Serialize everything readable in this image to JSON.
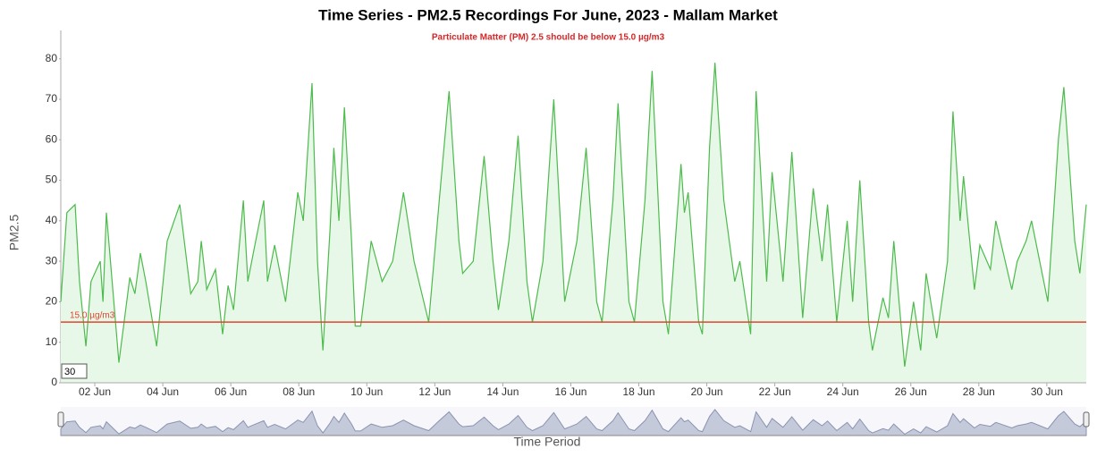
{
  "chart_data": {
    "type": "line",
    "title": "Time Series - PM2.5 Recordings For June, 2023 - Mallam Market",
    "subtitle": "Particulate Matter (PM) 2.5 should be below 15.0 µg/m3",
    "y_label": "PM2.5",
    "x_label": "Time Period",
    "threshold": 15,
    "threshold_label": "15.0 µg/m3",
    "threshold_color": "#e0442c",
    "roller_period": 30,
    "xlim": [
      1,
      31.16
    ],
    "xticks": [
      {
        "value": 2,
        "label": "02 Jun"
      },
      {
        "value": 4,
        "label": "04 Jun"
      },
      {
        "value": 6,
        "label": "06 Jun"
      },
      {
        "value": 8,
        "label": "08 Jun"
      },
      {
        "value": 10,
        "label": "10 Jun"
      },
      {
        "value": 12,
        "label": "12 Jun"
      },
      {
        "value": 14,
        "label": "14 Jun"
      },
      {
        "value": 16,
        "label": "16 Jun"
      },
      {
        "value": 18,
        "label": "18 Jun"
      },
      {
        "value": 20,
        "label": "20 Jun"
      },
      {
        "value": 22,
        "label": "22 Jun"
      },
      {
        "value": 24,
        "label": "24 Jun"
      },
      {
        "value": 26,
        "label": "26 Jun"
      },
      {
        "value": 28,
        "label": "28 Jun"
      },
      {
        "value": 30,
        "label": "30 Jun"
      }
    ],
    "ylim": [
      0,
      87
    ],
    "yticks": [
      0,
      10,
      20,
      30,
      40,
      50,
      60,
      70,
      80
    ],
    "series": [
      {
        "name": "PM2.5",
        "color": "#4cbb4c",
        "fill": "#e8f8e8",
        "x": [
          1.0,
          1.18,
          1.42,
          1.55,
          1.74,
          1.89,
          2.16,
          2.24,
          2.34,
          2.61,
          2.71,
          3.03,
          3.18,
          3.34,
          3.5,
          3.82,
          4.13,
          4.5,
          4.82,
          5.03,
          5.13,
          5.29,
          5.55,
          5.76,
          5.92,
          6.08,
          6.37,
          6.5,
          6.66,
          6.97,
          7.08,
          7.29,
          7.61,
          7.97,
          8.13,
          8.39,
          8.55,
          8.71,
          8.92,
          9.03,
          9.18,
          9.34,
          9.55,
          9.66,
          9.82,
          10.13,
          10.45,
          10.76,
          11.08,
          11.39,
          11.82,
          12.13,
          12.42,
          12.71,
          12.82,
          13.13,
          13.45,
          13.71,
          13.87,
          14.18,
          14.45,
          14.71,
          14.87,
          15.18,
          15.5,
          15.82,
          16.18,
          16.45,
          16.76,
          16.92,
          17.24,
          17.39,
          17.71,
          17.87,
          18.18,
          18.39,
          18.71,
          18.87,
          19.24,
          19.34,
          19.45,
          19.76,
          19.87,
          20.08,
          20.24,
          20.5,
          20.82,
          20.97,
          21.29,
          21.45,
          21.76,
          21.92,
          22.24,
          22.5,
          22.82,
          23.13,
          23.39,
          23.55,
          23.82,
          24.13,
          24.29,
          24.5,
          24.76,
          24.87,
          25.18,
          25.34,
          25.5,
          25.82,
          26.08,
          26.29,
          26.45,
          26.76,
          27.08,
          27.24,
          27.45,
          27.55,
          27.87,
          28.03,
          28.34,
          28.5,
          28.97,
          29.13,
          29.39,
          29.55,
          30.03,
          30.34,
          30.5,
          30.82,
          30.97,
          31.16
        ],
        "values": [
          20,
          42,
          44,
          25,
          9,
          25,
          30,
          20,
          42,
          15,
          5,
          26,
          22,
          32,
          25,
          9,
          35,
          44,
          22,
          25,
          35,
          23,
          28,
          12,
          24,
          18,
          45,
          25,
          32,
          45,
          25,
          34,
          20,
          47,
          40,
          74,
          30,
          8,
          38,
          58,
          40,
          68,
          35,
          14,
          14,
          35,
          25,
          30,
          47,
          30,
          15,
          45,
          72,
          35,
          27,
          30,
          56,
          30,
          18,
          35,
          61,
          25,
          15,
          30,
          70,
          20,
          35,
          58,
          20,
          15,
          45,
          69,
          20,
          15,
          45,
          77,
          20,
          12,
          54,
          42,
          47,
          15,
          12,
          58,
          79,
          45,
          25,
          30,
          12,
          72,
          25,
          52,
          25,
          57,
          16,
          48,
          30,
          44,
          15,
          40,
          20,
          50,
          15,
          8,
          21,
          16,
          35,
          4,
          20,
          8,
          27,
          11,
          30,
          67,
          40,
          51,
          23,
          34,
          28,
          40,
          23,
          30,
          35,
          40,
          20,
          60,
          73,
          35,
          27,
          44
        ]
      }
    ]
  }
}
